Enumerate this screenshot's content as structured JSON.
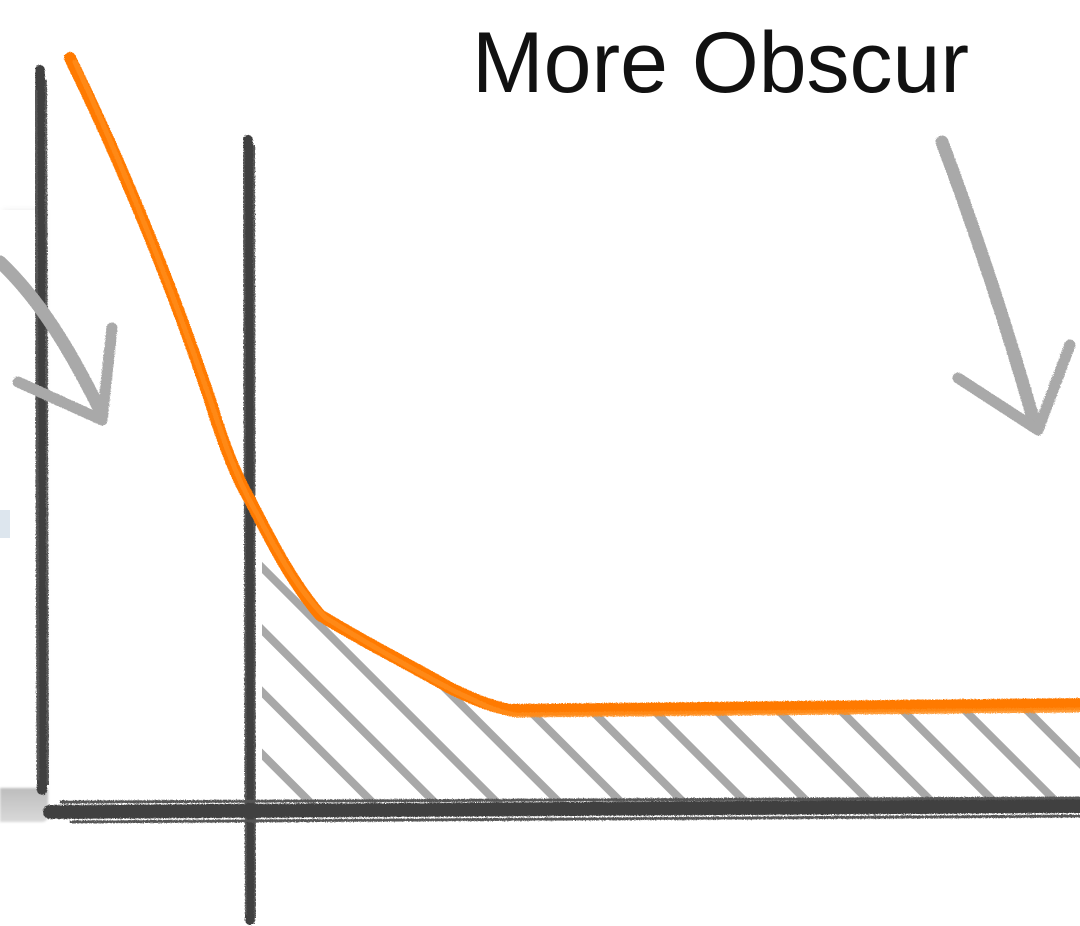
{
  "title": "More Obscur",
  "colors": {
    "curve": "#ff7a00",
    "axis": "#3f3f3f",
    "arrow": "#a9a9a9",
    "hatch": "#a8a8a8"
  }
}
